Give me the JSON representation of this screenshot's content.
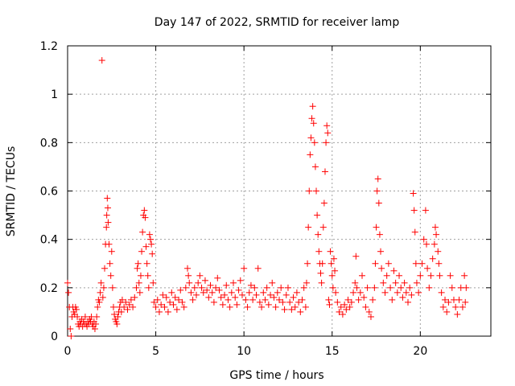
{
  "chart_data": {
    "type": "scatter",
    "title": "Day 147 of 2022, SRMTID for receiver lamp",
    "xlabel": "GPS time / hours",
    "ylabel": "SRMTID / TECUs",
    "xlim": [
      0,
      24
    ],
    "ylim": [
      0,
      1.2
    ],
    "x_ticks": [
      0,
      5,
      10,
      15,
      20
    ],
    "x_tick_labels": [
      "0",
      "5",
      "10",
      "15",
      "20"
    ],
    "y_ticks": [
      0,
      0.2,
      0.4,
      0.6,
      0.8,
      1.0,
      1.2
    ],
    "y_tick_labels": [
      "0",
      "0.2",
      "0.4",
      "0.6",
      "0.8",
      "1",
      "1.2"
    ],
    "grid": true,
    "marker": "+",
    "color": "#ff0000",
    "series": [
      {
        "name": "SRMTID",
        "points": [
          [
            0.0,
            0.22
          ],
          [
            0.05,
            0.18
          ],
          [
            0.1,
            0.12
          ],
          [
            0.15,
            0.03
          ],
          [
            0.2,
            0.0
          ],
          [
            0.25,
            0.08
          ],
          [
            0.3,
            0.12
          ],
          [
            0.35,
            0.1
          ],
          [
            0.4,
            0.09
          ],
          [
            0.45,
            0.12
          ],
          [
            0.5,
            0.11
          ],
          [
            0.55,
            0.08
          ],
          [
            0.6,
            0.05
          ],
          [
            0.65,
            0.04
          ],
          [
            0.7,
            0.06
          ],
          [
            0.75,
            0.05
          ],
          [
            0.8,
            0.07
          ],
          [
            0.85,
            0.04
          ],
          [
            0.9,
            0.06
          ],
          [
            0.95,
            0.05
          ],
          [
            1.0,
            0.08
          ],
          [
            1.05,
            0.05
          ],
          [
            1.1,
            0.04
          ],
          [
            1.15,
            0.06
          ],
          [
            1.2,
            0.05
          ],
          [
            1.25,
            0.07
          ],
          [
            1.3,
            0.06
          ],
          [
            1.35,
            0.08
          ],
          [
            1.4,
            0.05
          ],
          [
            1.45,
            0.04
          ],
          [
            1.5,
            0.06
          ],
          [
            1.55,
            0.03
          ],
          [
            1.6,
            0.05
          ],
          [
            1.65,
            0.08
          ],
          [
            1.7,
            0.12
          ],
          [
            1.75,
            0.15
          ],
          [
            1.8,
            0.14
          ],
          [
            1.85,
            0.18
          ],
          [
            1.9,
            0.22
          ],
          [
            1.95,
            1.14
          ],
          [
            2.0,
            0.16
          ],
          [
            2.05,
            0.2
          ],
          [
            2.1,
            0.28
          ],
          [
            2.15,
            0.38
          ],
          [
            2.2,
            0.45
          ],
          [
            2.22,
            0.5
          ],
          [
            2.25,
            0.57
          ],
          [
            2.28,
            0.53
          ],
          [
            2.3,
            0.47
          ],
          [
            2.35,
            0.38
          ],
          [
            2.4,
            0.3
          ],
          [
            2.45,
            0.25
          ],
          [
            2.5,
            0.35
          ],
          [
            2.55,
            0.2
          ],
          [
            2.6,
            0.12
          ],
          [
            2.65,
            0.09
          ],
          [
            2.7,
            0.07
          ],
          [
            2.75,
            0.06
          ],
          [
            2.8,
            0.05
          ],
          [
            2.85,
            0.08
          ],
          [
            2.9,
            0.1
          ],
          [
            2.95,
            0.12
          ],
          [
            3.0,
            0.14
          ],
          [
            3.05,
            0.1
          ],
          [
            3.1,
            0.15
          ],
          [
            3.2,
            0.12
          ],
          [
            3.3,
            0.14
          ],
          [
            3.4,
            0.11
          ],
          [
            3.5,
            0.13
          ],
          [
            3.6,
            0.15
          ],
          [
            3.7,
            0.12
          ],
          [
            3.8,
            0.16
          ],
          [
            3.9,
            0.2
          ],
          [
            3.95,
            0.28
          ],
          [
            4.0,
            0.3
          ],
          [
            4.05,
            0.22
          ],
          [
            4.1,
            0.18
          ],
          [
            4.15,
            0.25
          ],
          [
            4.2,
            0.35
          ],
          [
            4.25,
            0.43
          ],
          [
            4.3,
            0.5
          ],
          [
            4.35,
            0.52
          ],
          [
            4.4,
            0.49
          ],
          [
            4.45,
            0.37
          ],
          [
            4.5,
            0.3
          ],
          [
            4.55,
            0.25
          ],
          [
            4.6,
            0.2
          ],
          [
            4.65,
            0.42
          ],
          [
            4.7,
            0.4
          ],
          [
            4.75,
            0.38
          ],
          [
            4.8,
            0.34
          ],
          [
            4.85,
            0.22
          ],
          [
            4.9,
            0.14
          ],
          [
            5.0,
            0.12
          ],
          [
            5.1,
            0.15
          ],
          [
            5.2,
            0.1
          ],
          [
            5.3,
            0.13
          ],
          [
            5.4,
            0.17
          ],
          [
            5.5,
            0.12
          ],
          [
            5.6,
            0.16
          ],
          [
            5.7,
            0.1
          ],
          [
            5.8,
            0.14
          ],
          [
            5.9,
            0.18
          ],
          [
            6.0,
            0.13
          ],
          [
            6.1,
            0.16
          ],
          [
            6.2,
            0.11
          ],
          [
            6.3,
            0.15
          ],
          [
            6.4,
            0.19
          ],
          [
            6.5,
            0.14
          ],
          [
            6.6,
            0.12
          ],
          [
            6.7,
            0.2
          ],
          [
            6.8,
            0.28
          ],
          [
            6.85,
            0.25
          ],
          [
            6.9,
            0.22
          ],
          [
            7.0,
            0.18
          ],
          [
            7.1,
            0.15
          ],
          [
            7.2,
            0.2
          ],
          [
            7.3,
            0.17
          ],
          [
            7.4,
            0.22
          ],
          [
            7.5,
            0.25
          ],
          [
            7.6,
            0.2
          ],
          [
            7.7,
            0.18
          ],
          [
            7.8,
            0.23
          ],
          [
            7.9,
            0.19
          ],
          [
            8.0,
            0.16
          ],
          [
            8.1,
            0.21
          ],
          [
            8.2,
            0.18
          ],
          [
            8.3,
            0.14
          ],
          [
            8.4,
            0.2
          ],
          [
            8.5,
            0.24
          ],
          [
            8.6,
            0.19
          ],
          [
            8.7,
            0.16
          ],
          [
            8.8,
            0.13
          ],
          [
            8.9,
            0.17
          ],
          [
            9.0,
            0.21
          ],
          [
            9.1,
            0.15
          ],
          [
            9.2,
            0.12
          ],
          [
            9.3,
            0.18
          ],
          [
            9.4,
            0.22
          ],
          [
            9.5,
            0.16
          ],
          [
            9.6,
            0.13
          ],
          [
            9.7,
            0.19
          ],
          [
            9.8,
            0.23
          ],
          [
            9.9,
            0.17
          ],
          [
            10.0,
            0.28
          ],
          [
            10.1,
            0.15
          ],
          [
            10.2,
            0.12
          ],
          [
            10.3,
            0.18
          ],
          [
            10.4,
            0.21
          ],
          [
            10.5,
            0.15
          ],
          [
            10.6,
            0.2
          ],
          [
            10.7,
            0.17
          ],
          [
            10.8,
            0.28
          ],
          [
            10.9,
            0.14
          ],
          [
            11.0,
            0.12
          ],
          [
            11.1,
            0.18
          ],
          [
            11.2,
            0.15
          ],
          [
            11.3,
            0.2
          ],
          [
            11.4,
            0.13
          ],
          [
            11.5,
            0.17
          ],
          [
            11.6,
            0.22
          ],
          [
            11.7,
            0.16
          ],
          [
            11.8,
            0.12
          ],
          [
            11.9,
            0.18
          ],
          [
            12.0,
            0.15
          ],
          [
            12.1,
            0.2
          ],
          [
            12.2,
            0.14
          ],
          [
            12.3,
            0.11
          ],
          [
            12.4,
            0.17
          ],
          [
            12.5,
            0.2
          ],
          [
            12.6,
            0.14
          ],
          [
            12.7,
            0.11
          ],
          [
            12.8,
            0.16
          ],
          [
            12.9,
            0.12
          ],
          [
            13.0,
            0.18
          ],
          [
            13.1,
            0.14
          ],
          [
            13.2,
            0.1
          ],
          [
            13.3,
            0.15
          ],
          [
            13.4,
            0.2
          ],
          [
            13.5,
            0.12
          ],
          [
            13.55,
            0.22
          ],
          [
            13.6,
            0.3
          ],
          [
            13.65,
            0.45
          ],
          [
            13.7,
            0.6
          ],
          [
            13.75,
            0.75
          ],
          [
            13.8,
            0.82
          ],
          [
            13.85,
            0.9
          ],
          [
            13.9,
            0.95
          ],
          [
            13.95,
            0.88
          ],
          [
            14.0,
            0.8
          ],
          [
            14.05,
            0.7
          ],
          [
            14.1,
            0.6
          ],
          [
            14.15,
            0.5
          ],
          [
            14.2,
            0.42
          ],
          [
            14.25,
            0.35
          ],
          [
            14.3,
            0.3
          ],
          [
            14.35,
            0.26
          ],
          [
            14.4,
            0.22
          ],
          [
            14.45,
            0.3
          ],
          [
            14.5,
            0.45
          ],
          [
            14.55,
            0.55
          ],
          [
            14.6,
            0.68
          ],
          [
            14.65,
            0.8
          ],
          [
            14.7,
            0.87
          ],
          [
            14.75,
            0.84
          ],
          [
            14.8,
            0.15
          ],
          [
            14.85,
            0.13
          ],
          [
            14.9,
            0.35
          ],
          [
            14.95,
            0.3
          ],
          [
            15.0,
            0.25
          ],
          [
            15.05,
            0.2
          ],
          [
            15.1,
            0.32
          ],
          [
            15.15,
            0.27
          ],
          [
            15.2,
            0.18
          ],
          [
            15.3,
            0.14
          ],
          [
            15.4,
            0.1
          ],
          [
            15.5,
            0.12
          ],
          [
            15.6,
            0.09
          ],
          [
            15.7,
            0.13
          ],
          [
            15.8,
            0.11
          ],
          [
            15.9,
            0.15
          ],
          [
            16.0,
            0.12
          ],
          [
            16.1,
            0.14
          ],
          [
            16.2,
            0.18
          ],
          [
            16.3,
            0.22
          ],
          [
            16.35,
            0.33
          ],
          [
            16.4,
            0.2
          ],
          [
            16.5,
            0.15
          ],
          [
            16.6,
            0.18
          ],
          [
            16.7,
            0.25
          ],
          [
            16.8,
            0.16
          ],
          [
            16.9,
            0.12
          ],
          [
            17.0,
            0.2
          ],
          [
            17.1,
            0.1
          ],
          [
            17.2,
            0.08
          ],
          [
            17.3,
            0.15
          ],
          [
            17.4,
            0.2
          ],
          [
            17.45,
            0.3
          ],
          [
            17.5,
            0.45
          ],
          [
            17.55,
            0.6
          ],
          [
            17.6,
            0.65
          ],
          [
            17.65,
            0.55
          ],
          [
            17.7,
            0.42
          ],
          [
            17.75,
            0.35
          ],
          [
            17.8,
            0.28
          ],
          [
            17.9,
            0.22
          ],
          [
            18.0,
            0.18
          ],
          [
            18.1,
            0.25
          ],
          [
            18.2,
            0.3
          ],
          [
            18.3,
            0.2
          ],
          [
            18.4,
            0.15
          ],
          [
            18.5,
            0.27
          ],
          [
            18.6,
            0.22
          ],
          [
            18.7,
            0.18
          ],
          [
            18.8,
            0.25
          ],
          [
            18.9,
            0.2
          ],
          [
            19.0,
            0.16
          ],
          [
            19.1,
            0.22
          ],
          [
            19.2,
            0.18
          ],
          [
            19.3,
            0.14
          ],
          [
            19.4,
            0.2
          ],
          [
            19.5,
            0.17
          ],
          [
            19.6,
            0.59
          ],
          [
            19.65,
            0.52
          ],
          [
            19.7,
            0.43
          ],
          [
            19.75,
            0.3
          ],
          [
            19.8,
            0.22
          ],
          [
            19.9,
            0.18
          ],
          [
            20.0,
            0.25
          ],
          [
            20.1,
            0.3
          ],
          [
            20.2,
            0.4
          ],
          [
            20.3,
            0.52
          ],
          [
            20.35,
            0.38
          ],
          [
            20.4,
            0.28
          ],
          [
            20.5,
            0.2
          ],
          [
            20.6,
            0.25
          ],
          [
            20.7,
            0.32
          ],
          [
            20.8,
            0.38
          ],
          [
            20.85,
            0.45
          ],
          [
            20.9,
            0.42
          ],
          [
            21.0,
            0.35
          ],
          [
            21.05,
            0.3
          ],
          [
            21.1,
            0.25
          ],
          [
            21.2,
            0.18
          ],
          [
            21.3,
            0.12
          ],
          [
            21.4,
            0.15
          ],
          [
            21.5,
            0.1
          ],
          [
            21.6,
            0.14
          ],
          [
            21.7,
            0.25
          ],
          [
            21.8,
            0.2
          ],
          [
            21.9,
            0.15
          ],
          [
            22.0,
            0.12
          ],
          [
            22.1,
            0.09
          ],
          [
            22.2,
            0.15
          ],
          [
            22.3,
            0.2
          ],
          [
            22.4,
            0.12
          ],
          [
            22.5,
            0.25
          ],
          [
            22.55,
            0.14
          ],
          [
            22.6,
            0.2
          ]
        ]
      }
    ]
  }
}
